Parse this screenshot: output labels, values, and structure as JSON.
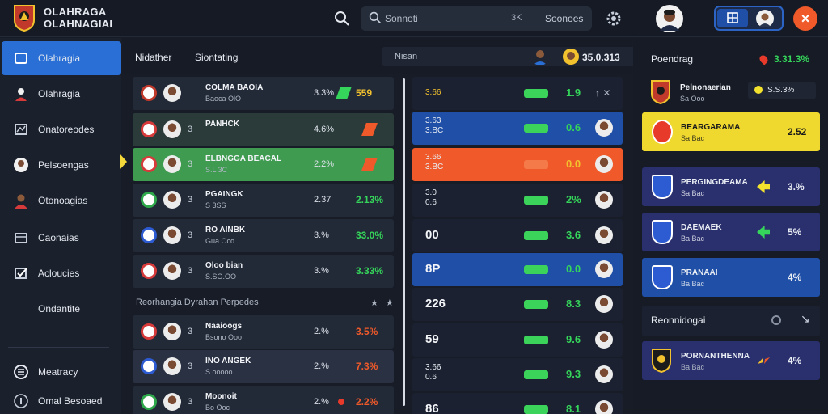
{
  "header": {
    "brand_line1": "OLAHRAGA",
    "brand_line2": "OLAHNAGIAI",
    "search_placeholder": "Sonnoti",
    "search_shortcut": "3K",
    "search_button": "Soonoes"
  },
  "sidebar": {
    "items": [
      {
        "label": "Olahragia",
        "icon": "home-icon",
        "active": true
      },
      {
        "label": "Olahragia",
        "icon": "person-icon",
        "active": false
      },
      {
        "label": "Onatoreodes",
        "icon": "chart-icon",
        "active": false
      },
      {
        "label": "Pelsoengas",
        "icon": "avatar-icon",
        "active": false
      },
      {
        "label": "Otonoagias",
        "icon": "user-icon",
        "active": false
      },
      {
        "label": "Caonaias",
        "icon": "folder-icon",
        "active": false
      },
      {
        "label": "Acloucies",
        "icon": "check-icon",
        "active": false
      },
      {
        "label": "Ondantite",
        "icon": "",
        "active": false
      },
      {
        "label": "Meatracy",
        "icon": "globe-icon",
        "active": false
      },
      {
        "label": "Omal Besoaed",
        "icon": "info-icon",
        "active": false
      }
    ]
  },
  "subheader": {
    "tabs": [
      "Nidather",
      "Siontating"
    ],
    "pill_label": "Nisan",
    "stat": "35.0.313"
  },
  "left_rows": [
    {
      "badge_color": "#c0392b",
      "num": "",
      "name": "COLMA BAOIA",
      "sub": "Baoca OlO",
      "pct": "3.3%",
      "val": "559",
      "val_color": "#f2c12e",
      "trend": "up",
      "bg": "#222937"
    },
    {
      "badge_color": "#d63a3a",
      "num": "3",
      "name": "PANHCK",
      "sub": "",
      "pct": "4.6%",
      "val": "",
      "val_color": "#f05a2a",
      "trend": "down",
      "bg": "#2a3b3a"
    },
    {
      "badge_color": "#d63a3a",
      "num": "3",
      "name": "ELBNGGA BEACAL",
      "sub": "S.L 3C",
      "pct": "2.2%",
      "val": "",
      "val_color": "#f2c12e",
      "trend": "down",
      "bg": "#3e9b4f"
    },
    {
      "badge_color": "#2ea84a",
      "num": "3",
      "name": "PGAINGK",
      "sub": "S 3SS",
      "pct": "2.37",
      "val": "2.13%",
      "val_color": "#35d45a",
      "trend": "",
      "bg": "#222937"
    },
    {
      "badge_color": "#2d5bd1",
      "num": "3",
      "name": "RO AINBK",
      "sub": "Gua Oco",
      "pct": "3.%",
      "val": "33.0%",
      "val_color": "#35d45a",
      "trend": "",
      "bg": "#222937"
    },
    {
      "badge_color": "#d63a3a",
      "num": "3",
      "name": "Oloo bian",
      "sub": "S.SO.OO",
      "pct": "3.%",
      "val": "3.33%",
      "val_color": "#35d45a",
      "trend": "",
      "bg": "#222937"
    }
  ],
  "section": {
    "label": "Reorhangia Dyrahan Perpedes"
  },
  "left_rows2": [
    {
      "badge_color": "#d63a3a",
      "num": "3",
      "name": "Naaioogs",
      "sub": "Bsono Ooo",
      "pct": "2.%",
      "val": "3.5%",
      "val_color": "#f05a2a",
      "trend": "",
      "bg": "#222937"
    },
    {
      "badge_color": "#2d5bd1",
      "num": "3",
      "name": "INO ANGEK",
      "sub": "S.ooooo",
      "pct": "2.%",
      "val": "7.3%",
      "val_color": "#f05a2a",
      "trend": "",
      "bg": "#2a3142"
    },
    {
      "badge_color": "#2ea84a",
      "num": "3",
      "name": "Moonoit",
      "sub": "Bo Ooc",
      "pct": "2.%",
      "val": "2.2%",
      "val_color": "#f05a2a",
      "trend": "dot",
      "bg": "#222937"
    }
  ],
  "mid_rows": [
    {
      "text": "3.66",
      "text2": "",
      "chip": true,
      "score": "1.9",
      "score_color": "#35d45a",
      "bg": "#1b2130",
      "face": false
    },
    {
      "text": "3.63",
      "text2": "3.BC",
      "chip": true,
      "score": "0.6",
      "score_color": "#35d45a",
      "bg": "#1f4fa6",
      "face": true
    },
    {
      "text": "3.66",
      "text2": "3.BC",
      "chip": true,
      "score": "0.0",
      "score_color": "#f2c12e",
      "bg": "#f05a2a",
      "face": true
    },
    {
      "text": "3.0",
      "text2": "0.6",
      "chip": true,
      "score": "2%",
      "score_color": "#35d45a",
      "bg": "#1b2130",
      "face": true
    },
    {
      "text": "00",
      "text2": "",
      "chip": true,
      "score": "3.6",
      "score_color": "#35d45a",
      "bg": "#1b2130",
      "face": true
    },
    {
      "text": "8P",
      "text2": "",
      "chip": true,
      "score": "0.0",
      "score_color": "#35d45a",
      "bg": "#1f4fa6",
      "face": true
    },
    {
      "text": "226",
      "text2": "",
      "chip": true,
      "score": "8.3",
      "score_color": "#35d45a",
      "bg": "#1b2130",
      "face": true
    },
    {
      "text": "59",
      "text2": "",
      "chip": true,
      "score": "9.6",
      "score_color": "#35d45a",
      "bg": "#1b2130",
      "face": true
    },
    {
      "text": "3.66",
      "text2": "0.6",
      "chip": true,
      "score": "9.3",
      "score_color": "#35d45a",
      "bg": "#1b2130",
      "face": true
    },
    {
      "text": "86",
      "text2": "",
      "chip": true,
      "score": "8.1",
      "score_color": "#35d45a",
      "bg": "#1b2130",
      "face": true
    }
  ],
  "right": {
    "title": "Poendrag",
    "stat": "3.31.3%",
    "team": {
      "name": "Pelnonaerian",
      "sub": "Sa Ooo"
    },
    "team_pill": "S.S.3%",
    "cards": [
      {
        "name": "BEARGARAMA",
        "sub": "Sa Bac",
        "val": "2.52",
        "bg": "#f0d92e",
        "fg": "#1b1b1b",
        "arrow": ""
      },
      {
        "name": "PERGINGDEAMA",
        "sub": "Sa Bac",
        "val": "3.%",
        "bg": "#2a2f6d",
        "fg": "#e8ecf3",
        "arrow": "yellow"
      },
      {
        "name": "DAEMAEK",
        "sub": "Ba Bac",
        "val": "5%",
        "bg": "#2a2f6d",
        "fg": "#e8ecf3",
        "arrow": "green"
      },
      {
        "name": "PRANAAI",
        "sub": "Ba Bac",
        "val": "4%",
        "bg": "#1f4fa6",
        "fg": "#e8ecf3",
        "arrow": ""
      }
    ],
    "rec_title": "Reonnidogai",
    "rec_card": {
      "name": "PORNANTHENNA",
      "sub": "Ba Bac",
      "val": "4%"
    }
  }
}
